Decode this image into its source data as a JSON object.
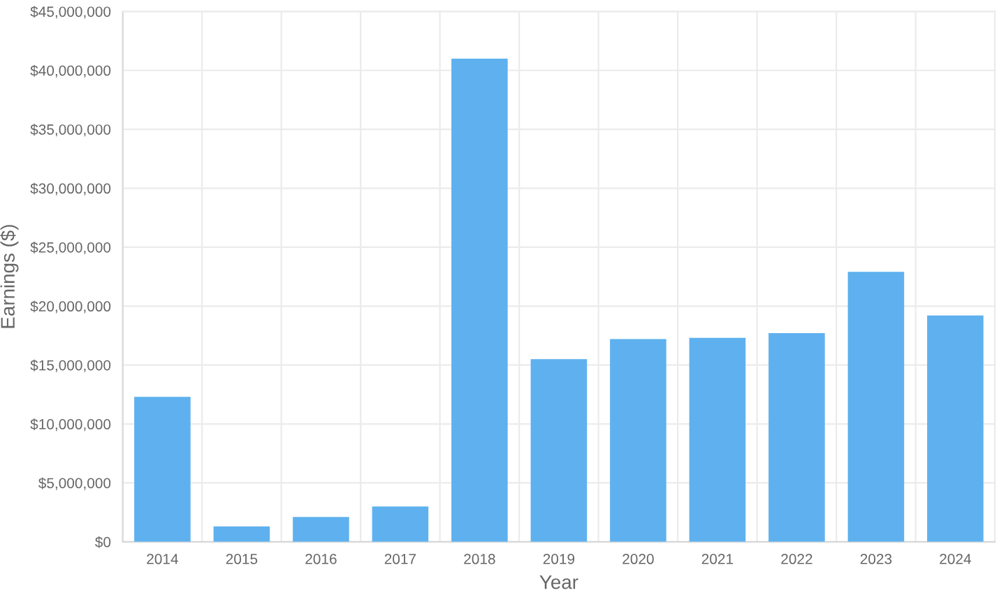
{
  "chart_data": {
    "type": "bar",
    "xlabel": "Year",
    "ylabel": "Earnings ($)",
    "categories": [
      "2014",
      "2015",
      "2016",
      "2017",
      "2018",
      "2019",
      "2020",
      "2021",
      "2022",
      "2023",
      "2024"
    ],
    "values": [
      12300000,
      1300000,
      2100000,
      3000000,
      41000000,
      15500000,
      17200000,
      17300000,
      17700000,
      22900000,
      19200000
    ],
    "color": "#5eb1ee",
    "ylim": [
      0,
      45000000
    ],
    "yticks": [
      {
        "value": 0,
        "label": "$0"
      },
      {
        "value": 5000000,
        "label": "$5,000,000"
      },
      {
        "value": 10000000,
        "label": "$10,000,000"
      },
      {
        "value": 15000000,
        "label": "$15,000,000"
      },
      {
        "value": 20000000,
        "label": "$20,000,000"
      },
      {
        "value": 25000000,
        "label": "$25,000,000"
      },
      {
        "value": 30000000,
        "label": "$30,000,000"
      },
      {
        "value": 35000000,
        "label": "$35,000,000"
      },
      {
        "value": 40000000,
        "label": "$40,000,000"
      },
      {
        "value": 45000000,
        "label": "$45,000,000"
      }
    ],
    "grid": true
  }
}
